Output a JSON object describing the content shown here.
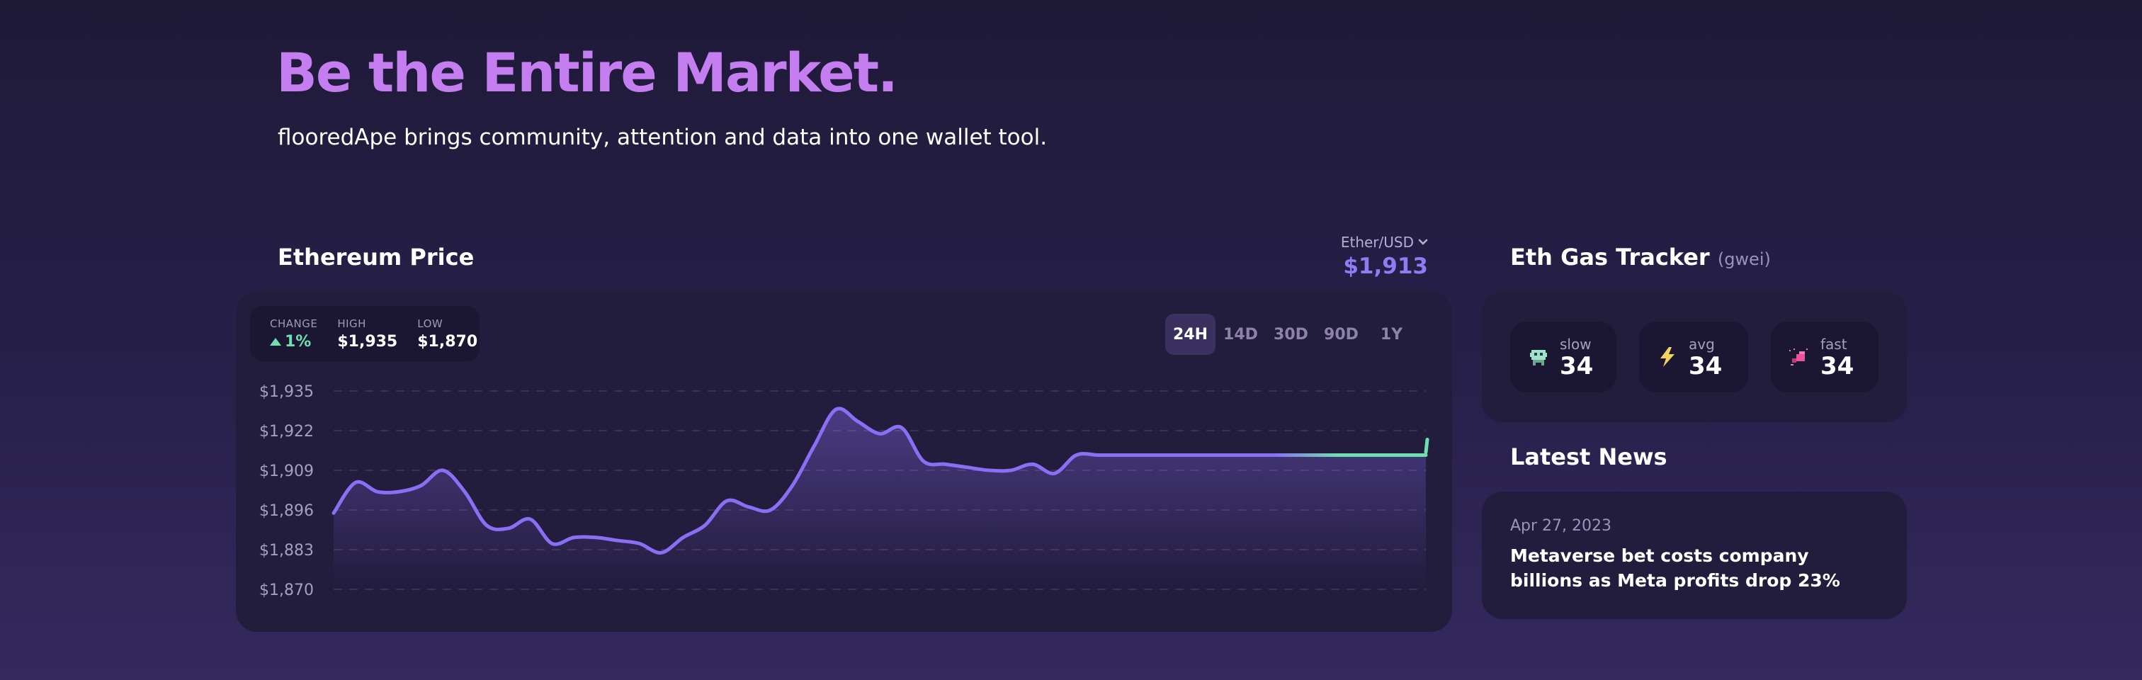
{
  "hero": {
    "title": "Be the Entire Market.",
    "subtitle": "flooredApe brings community, attention and data into one wallet tool."
  },
  "price_section": {
    "title": "Ethereum Price",
    "currency_pair": "Ether/USD",
    "current_price": "$1,913",
    "stats": {
      "change_label": "CHANGE",
      "change_value": "1%",
      "high_label": "HIGH",
      "high_value": "$1,935",
      "low_label": "LOW",
      "low_value": "$1,870"
    },
    "ranges": [
      "24H",
      "14D",
      "30D",
      "90D",
      "1Y"
    ],
    "active_range": "24H"
  },
  "chart_data": {
    "type": "area",
    "title": "",
    "xlabel": "",
    "ylabel": "",
    "ylim": [
      1870,
      1935
    ],
    "ytick_labels": [
      "$1,935",
      "$1,922",
      "$1,909",
      "$1,896",
      "$1,883",
      "$1,870"
    ],
    "yticks": [
      1935,
      1922,
      1909,
      1896,
      1883,
      1870
    ],
    "grid": true,
    "x": [
      0,
      2,
      4,
      6,
      8,
      10,
      12,
      14,
      16,
      18,
      20,
      22,
      24,
      26,
      28,
      30,
      32,
      34,
      36,
      38,
      40,
      42,
      44,
      46,
      48,
      50,
      52,
      54,
      56,
      58,
      60,
      62,
      64,
      66,
      68,
      70,
      72,
      74,
      76,
      78,
      80,
      82,
      84,
      86,
      88,
      90,
      92,
      94,
      96,
      98,
      100
    ],
    "values": [
      1895,
      1905,
      1902,
      1902,
      1904,
      1909,
      1902,
      1891,
      1890,
      1893,
      1885,
      1887,
      1887,
      1886,
      1885,
      1882,
      1887,
      1891,
      1899,
      1897,
      1896,
      1904,
      1917,
      1929,
      1925,
      1921,
      1923,
      1912,
      1911,
      1910,
      1909,
      1909,
      1911,
      1908,
      1914,
      1914,
      1914,
      1914,
      1914,
      1914,
      1914,
      1914,
      1914,
      1914,
      1914,
      1914,
      1914,
      1914,
      1914,
      1914,
      1914
    ],
    "series_colors": {
      "line": "#8a6ff5",
      "recent": "#6ee0b0"
    }
  },
  "gas": {
    "title": "Eth Gas Tracker",
    "unit": "(gwei)",
    "levels": [
      {
        "label": "slow",
        "value": "34",
        "icon": "robot-icon"
      },
      {
        "label": "avg",
        "value": "34",
        "icon": "lightning-icon"
      },
      {
        "label": "fast",
        "value": "34",
        "icon": "rocket-icon"
      }
    ]
  },
  "news": {
    "title": "Latest News",
    "date": "Apr 27, 2023",
    "headline": "Metaverse bet costs company billions as Meta profits drop 23%"
  },
  "colors": {
    "accent": "#c47ef0",
    "price": "#8f7cf5",
    "positive": "#6ee0b0"
  }
}
